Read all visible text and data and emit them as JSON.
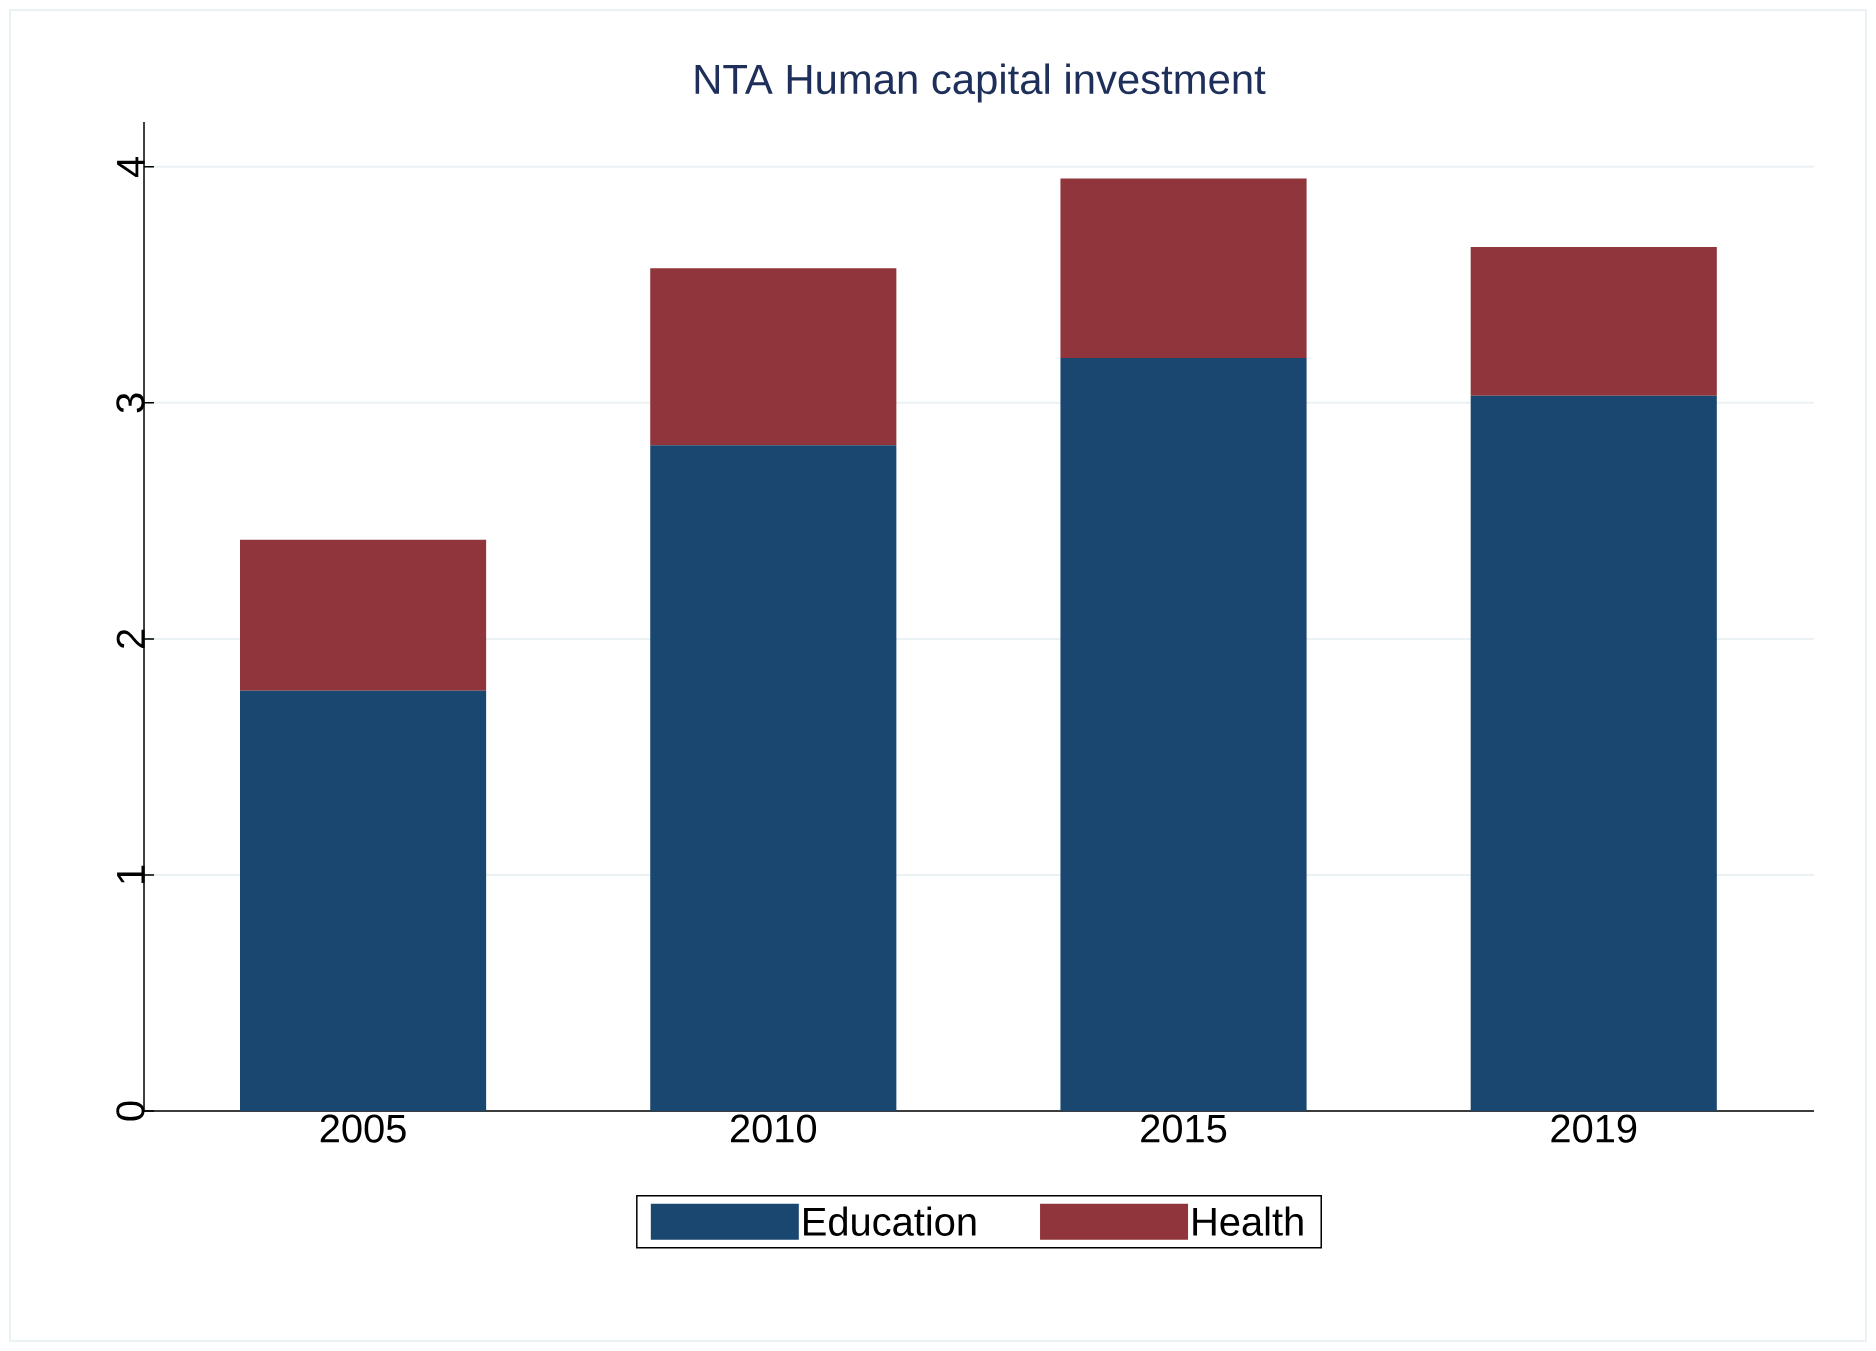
{
  "chart_data": {
    "type": "bar",
    "title": "NTA Human capital investment",
    "categories": [
      "2005",
      "2010",
      "2015",
      "2019"
    ],
    "series": [
      {
        "name": "Education",
        "color": "#1a476f",
        "values": [
          1.78,
          2.82,
          3.19,
          3.03
        ]
      },
      {
        "name": "Health",
        "color": "#90353b",
        "values": [
          0.64,
          0.75,
          0.76,
          0.63
        ]
      }
    ],
    "stacked": true,
    "ylim": [
      0,
      4.19
    ],
    "yticks": [
      0,
      1,
      2,
      3,
      4
    ],
    "grid": "y",
    "legend": "bottom"
  }
}
